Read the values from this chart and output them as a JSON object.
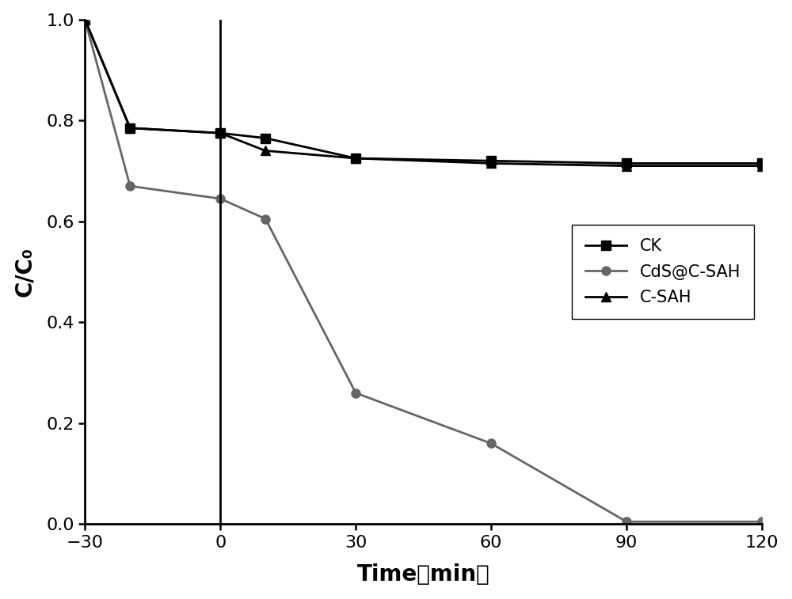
{
  "CK": {
    "x": [
      -30,
      -20,
      0,
      10,
      30,
      60,
      90,
      120
    ],
    "y": [
      1.0,
      0.785,
      0.775,
      0.765,
      0.725,
      0.72,
      0.715,
      0.715
    ],
    "color": "#000000",
    "marker": "s",
    "label": "CK",
    "linewidth": 2.0,
    "markersize": 8
  },
  "CdS_C_SAH": {
    "x": [
      -30,
      -20,
      0,
      10,
      30,
      60,
      90,
      120
    ],
    "y": [
      1.0,
      0.67,
      0.645,
      0.605,
      0.26,
      0.16,
      0.005,
      0.005
    ],
    "color": "#666666",
    "marker": "o",
    "label": "CdS@C-SAH",
    "linewidth": 2.0,
    "markersize": 8
  },
  "C_SAH": {
    "x": [
      -30,
      -20,
      0,
      10,
      30,
      60,
      90,
      120
    ],
    "y": [
      1.0,
      0.785,
      0.775,
      0.74,
      0.725,
      0.715,
      0.71,
      0.71
    ],
    "color": "#000000",
    "marker": "^",
    "label": "C-SAH",
    "linewidth": 2.0,
    "markersize": 8
  },
  "xlabel": "Time（min）",
  "ylabel": "C/C₀",
  "xlim": [
    -30,
    120
  ],
  "ylim": [
    0.0,
    1.0
  ],
  "xticks": [
    -30,
    0,
    30,
    60,
    90,
    120
  ],
  "yticks": [
    0.0,
    0.2,
    0.4,
    0.6,
    0.8,
    1.0
  ],
  "vline_x": 0,
  "legend_loc": "center right",
  "figsize": [
    10.0,
    7.57
  ],
  "dpi": 100,
  "background_color": "#ffffff"
}
